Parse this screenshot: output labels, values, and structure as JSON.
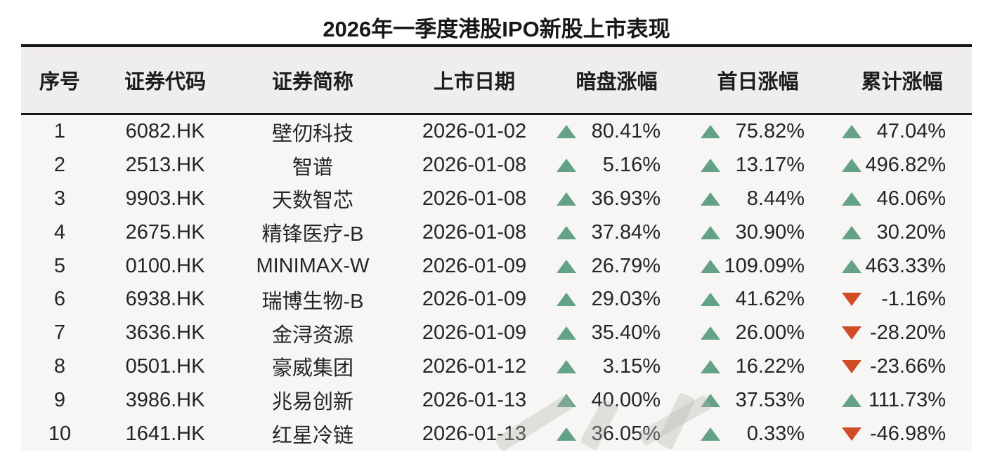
{
  "title": "2026年一季度港股IPO新股上市表现",
  "table": {
    "headers": [
      "序号",
      "证券代码",
      "证券简称",
      "上市日期",
      "暗盘涨幅",
      "首日涨幅",
      "累计涨幅"
    ],
    "rows": [
      {
        "no": "1",
        "code": "6082.HK",
        "name": "壁仞科技",
        "date": "2026-01-02",
        "dark": {
          "dir": "up",
          "value": "80.41%"
        },
        "first": {
          "dir": "up",
          "value": "75.82%"
        },
        "cum": {
          "dir": "up",
          "value": "47.04%"
        }
      },
      {
        "no": "2",
        "code": "2513.HK",
        "name": "智谱",
        "date": "2026-01-08",
        "dark": {
          "dir": "up",
          "value": "5.16%"
        },
        "first": {
          "dir": "up",
          "value": "13.17%"
        },
        "cum": {
          "dir": "up",
          "value": "496.82%"
        }
      },
      {
        "no": "3",
        "code": "9903.HK",
        "name": "天数智芯",
        "date": "2026-01-08",
        "dark": {
          "dir": "up",
          "value": "36.93%"
        },
        "first": {
          "dir": "up",
          "value": "8.44%"
        },
        "cum": {
          "dir": "up",
          "value": "46.06%"
        }
      },
      {
        "no": "4",
        "code": "2675.HK",
        "name": "精锋医疗-B",
        "date": "2026-01-08",
        "dark": {
          "dir": "up",
          "value": "37.84%"
        },
        "first": {
          "dir": "up",
          "value": "30.90%"
        },
        "cum": {
          "dir": "up",
          "value": "30.20%"
        }
      },
      {
        "no": "5",
        "code": "0100.HK",
        "name": "MINIMAX-W",
        "date": "2026-01-09",
        "dark": {
          "dir": "up",
          "value": "26.79%"
        },
        "first": {
          "dir": "up",
          "value": "109.09%"
        },
        "cum": {
          "dir": "up",
          "value": "463.33%"
        }
      },
      {
        "no": "6",
        "code": "6938.HK",
        "name": "瑞博生物-B",
        "date": "2026-01-09",
        "dark": {
          "dir": "up",
          "value": "29.03%"
        },
        "first": {
          "dir": "up",
          "value": "41.62%"
        },
        "cum": {
          "dir": "down",
          "value": "-1.16%"
        }
      },
      {
        "no": "7",
        "code": "3636.HK",
        "name": "金浔资源",
        "date": "2026-01-09",
        "dark": {
          "dir": "up",
          "value": "35.40%"
        },
        "first": {
          "dir": "up",
          "value": "26.00%"
        },
        "cum": {
          "dir": "down",
          "value": "-28.20%"
        }
      },
      {
        "no": "8",
        "code": "0501.HK",
        "name": "豪威集团",
        "date": "2026-01-12",
        "dark": {
          "dir": "up",
          "value": "3.15%"
        },
        "first": {
          "dir": "up",
          "value": "16.22%"
        },
        "cum": {
          "dir": "down",
          "value": "-23.66%"
        }
      },
      {
        "no": "9",
        "code": "3986.HK",
        "name": "兆易创新",
        "date": "2026-01-13",
        "dark": {
          "dir": "up",
          "value": "40.00%"
        },
        "first": {
          "dir": "up",
          "value": "37.53%"
        },
        "cum": {
          "dir": "up",
          "value": "111.73%"
        }
      },
      {
        "no": "10",
        "code": "1641.HK",
        "name": "红星冷链",
        "date": "2026-01-13",
        "dark": {
          "dir": "up",
          "value": "36.05%"
        },
        "first": {
          "dir": "up",
          "value": "0.33%"
        },
        "cum": {
          "dir": "down",
          "value": "-46.98%"
        }
      }
    ]
  },
  "chart_data": {
    "type": "table",
    "title": "2026年一季度港股IPO新股上市表现",
    "columns": [
      "序号",
      "证券代码",
      "证券简称",
      "上市日期",
      "暗盘涨幅",
      "首日涨幅",
      "累计涨幅"
    ],
    "rows": [
      [
        "1",
        "6082.HK",
        "壁仞科技",
        "2026-01-02",
        "80.41%",
        "75.82%",
        "47.04%"
      ],
      [
        "2",
        "2513.HK",
        "智谱",
        "2026-01-08",
        "5.16%",
        "13.17%",
        "496.82%"
      ],
      [
        "3",
        "9903.HK",
        "天数智芯",
        "2026-01-08",
        "36.93%",
        "8.44%",
        "46.06%"
      ],
      [
        "4",
        "2675.HK",
        "精锋医疗-B",
        "2026-01-08",
        "37.84%",
        "30.90%",
        "30.20%"
      ],
      [
        "5",
        "0100.HK",
        "MINIMAX-W",
        "2026-01-09",
        "26.79%",
        "109.09%",
        "463.33%"
      ],
      [
        "6",
        "6938.HK",
        "瑞博生物-B",
        "2026-01-09",
        "29.03%",
        "41.62%",
        "-1.16%"
      ],
      [
        "7",
        "3636.HK",
        "金浔资源",
        "2026-01-09",
        "35.40%",
        "26.00%",
        "-28.20%"
      ],
      [
        "8",
        "0501.HK",
        "豪威集团",
        "2026-01-12",
        "3.15%",
        "16.22%",
        "-23.66%"
      ],
      [
        "9",
        "3986.HK",
        "兆易创新",
        "2026-01-13",
        "40.00%",
        "37.53%",
        "111.73%"
      ],
      [
        "10",
        "1641.HK",
        "红星冷链",
        "2026-01-13",
        "36.05%",
        "0.33%",
        "-46.98%"
      ]
    ]
  },
  "colors": {
    "up_triangle": "#63a287",
    "down_triangle": "#d04b26",
    "rule": "#161616",
    "header_bg": "#efeeec",
    "table_bg": "#f7f6f4",
    "text": "#24242a"
  }
}
